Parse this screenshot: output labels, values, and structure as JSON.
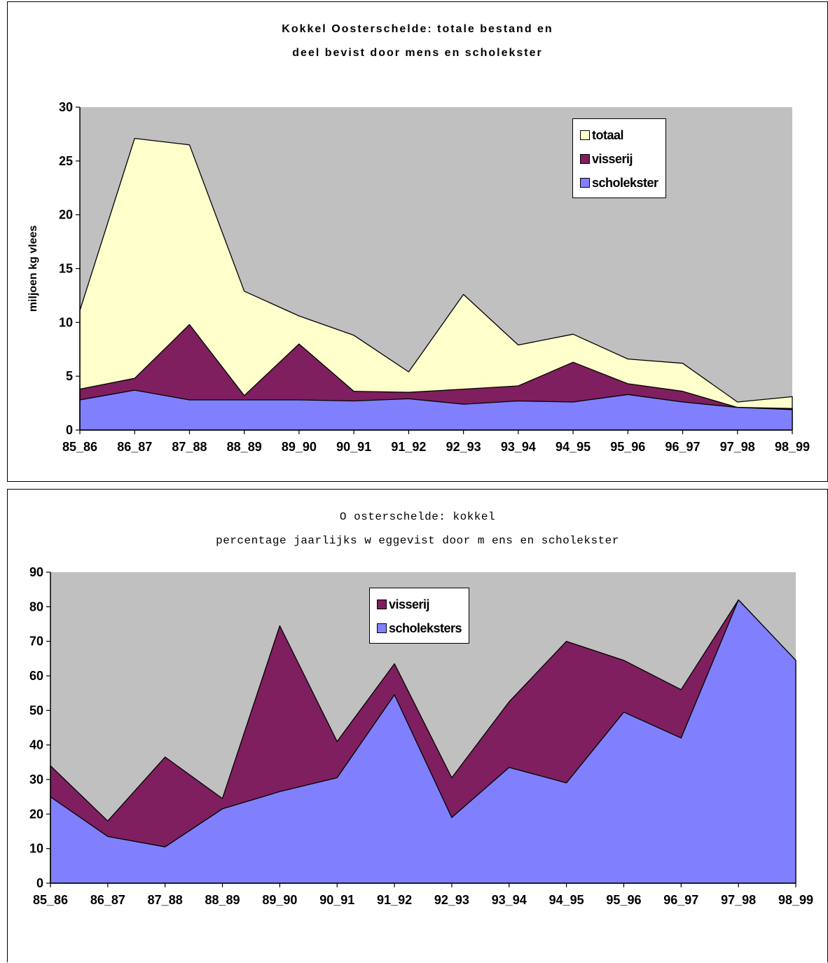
{
  "chart_data": [
    {
      "type": "area",
      "title_line1": "Kokkel Oosterschelde: totale bestand en",
      "title_line2": "deel bevist door mens en scholekster",
      "xlabel": "",
      "ylabel": "miljoen kg vlees",
      "ylim": [
        0,
        30
      ],
      "yticks": [
        "0",
        "5",
        "10",
        "15",
        "20",
        "25",
        "30"
      ],
      "grid": false,
      "legend_position": "top-right",
      "categories": [
        "85_86",
        "86_87",
        "87_88",
        "88_89",
        "89_90",
        "90_91",
        "91_92",
        "92_93",
        "93_94",
        "94_95",
        "95_96",
        "96_97",
        "97_98",
        "98_99"
      ],
      "series": [
        {
          "name": "totaal",
          "color": "#ffffcc",
          "values": [
            11.1,
            27.1,
            26.5,
            12.9,
            10.6,
            8.8,
            5.4,
            12.6,
            7.9,
            8.9,
            6.6,
            6.2,
            2.6,
            3.1
          ]
        },
        {
          "name": "visserij",
          "color": "#7f1f5f",
          "values": [
            3.8,
            4.8,
            9.8,
            3.2,
            8.0,
            3.6,
            3.5,
            3.8,
            4.1,
            6.3,
            4.3,
            3.6,
            2.1,
            2.0
          ]
        },
        {
          "name": "scholekster",
          "color": "#8080ff",
          "values": [
            2.8,
            3.7,
            2.8,
            2.8,
            2.8,
            2.7,
            2.9,
            2.4,
            2.7,
            2.6,
            3.3,
            2.6,
            2.1,
            1.9
          ]
        }
      ]
    },
    {
      "type": "area",
      "title_line1": "O osterschelde: kokkel",
      "title_line2": "percentage jaarlijks w eggevist door m ens en scholekster",
      "xlabel": "",
      "ylabel": "",
      "ylim": [
        0,
        90
      ],
      "yticks": [
        "0",
        "10",
        "20",
        "30",
        "40",
        "50",
        "60",
        "70",
        "80",
        "90"
      ],
      "grid": false,
      "legend_position": "top-center",
      "categories": [
        "85_86",
        "86_87",
        "87_88",
        "88_89",
        "89_90",
        "90_91",
        "91_92",
        "92_93",
        "93_94",
        "94_95",
        "95_96",
        "96_97",
        "97_98",
        "98_99"
      ],
      "series": [
        {
          "name": "visserij",
          "color": "#7f1f5f",
          "values": [
            34,
            18,
            36.5,
            24.5,
            74.5,
            41,
            63.5,
            30.5,
            52.5,
            70,
            64.5,
            56,
            82,
            64.5
          ]
        },
        {
          "name": "scholeksters",
          "color": "#8080ff",
          "values": [
            25,
            13.5,
            10.5,
            21.5,
            26.5,
            30.5,
            54.5,
            19,
            33.5,
            29,
            49.5,
            42,
            82,
            64.5
          ]
        }
      ]
    }
  ]
}
